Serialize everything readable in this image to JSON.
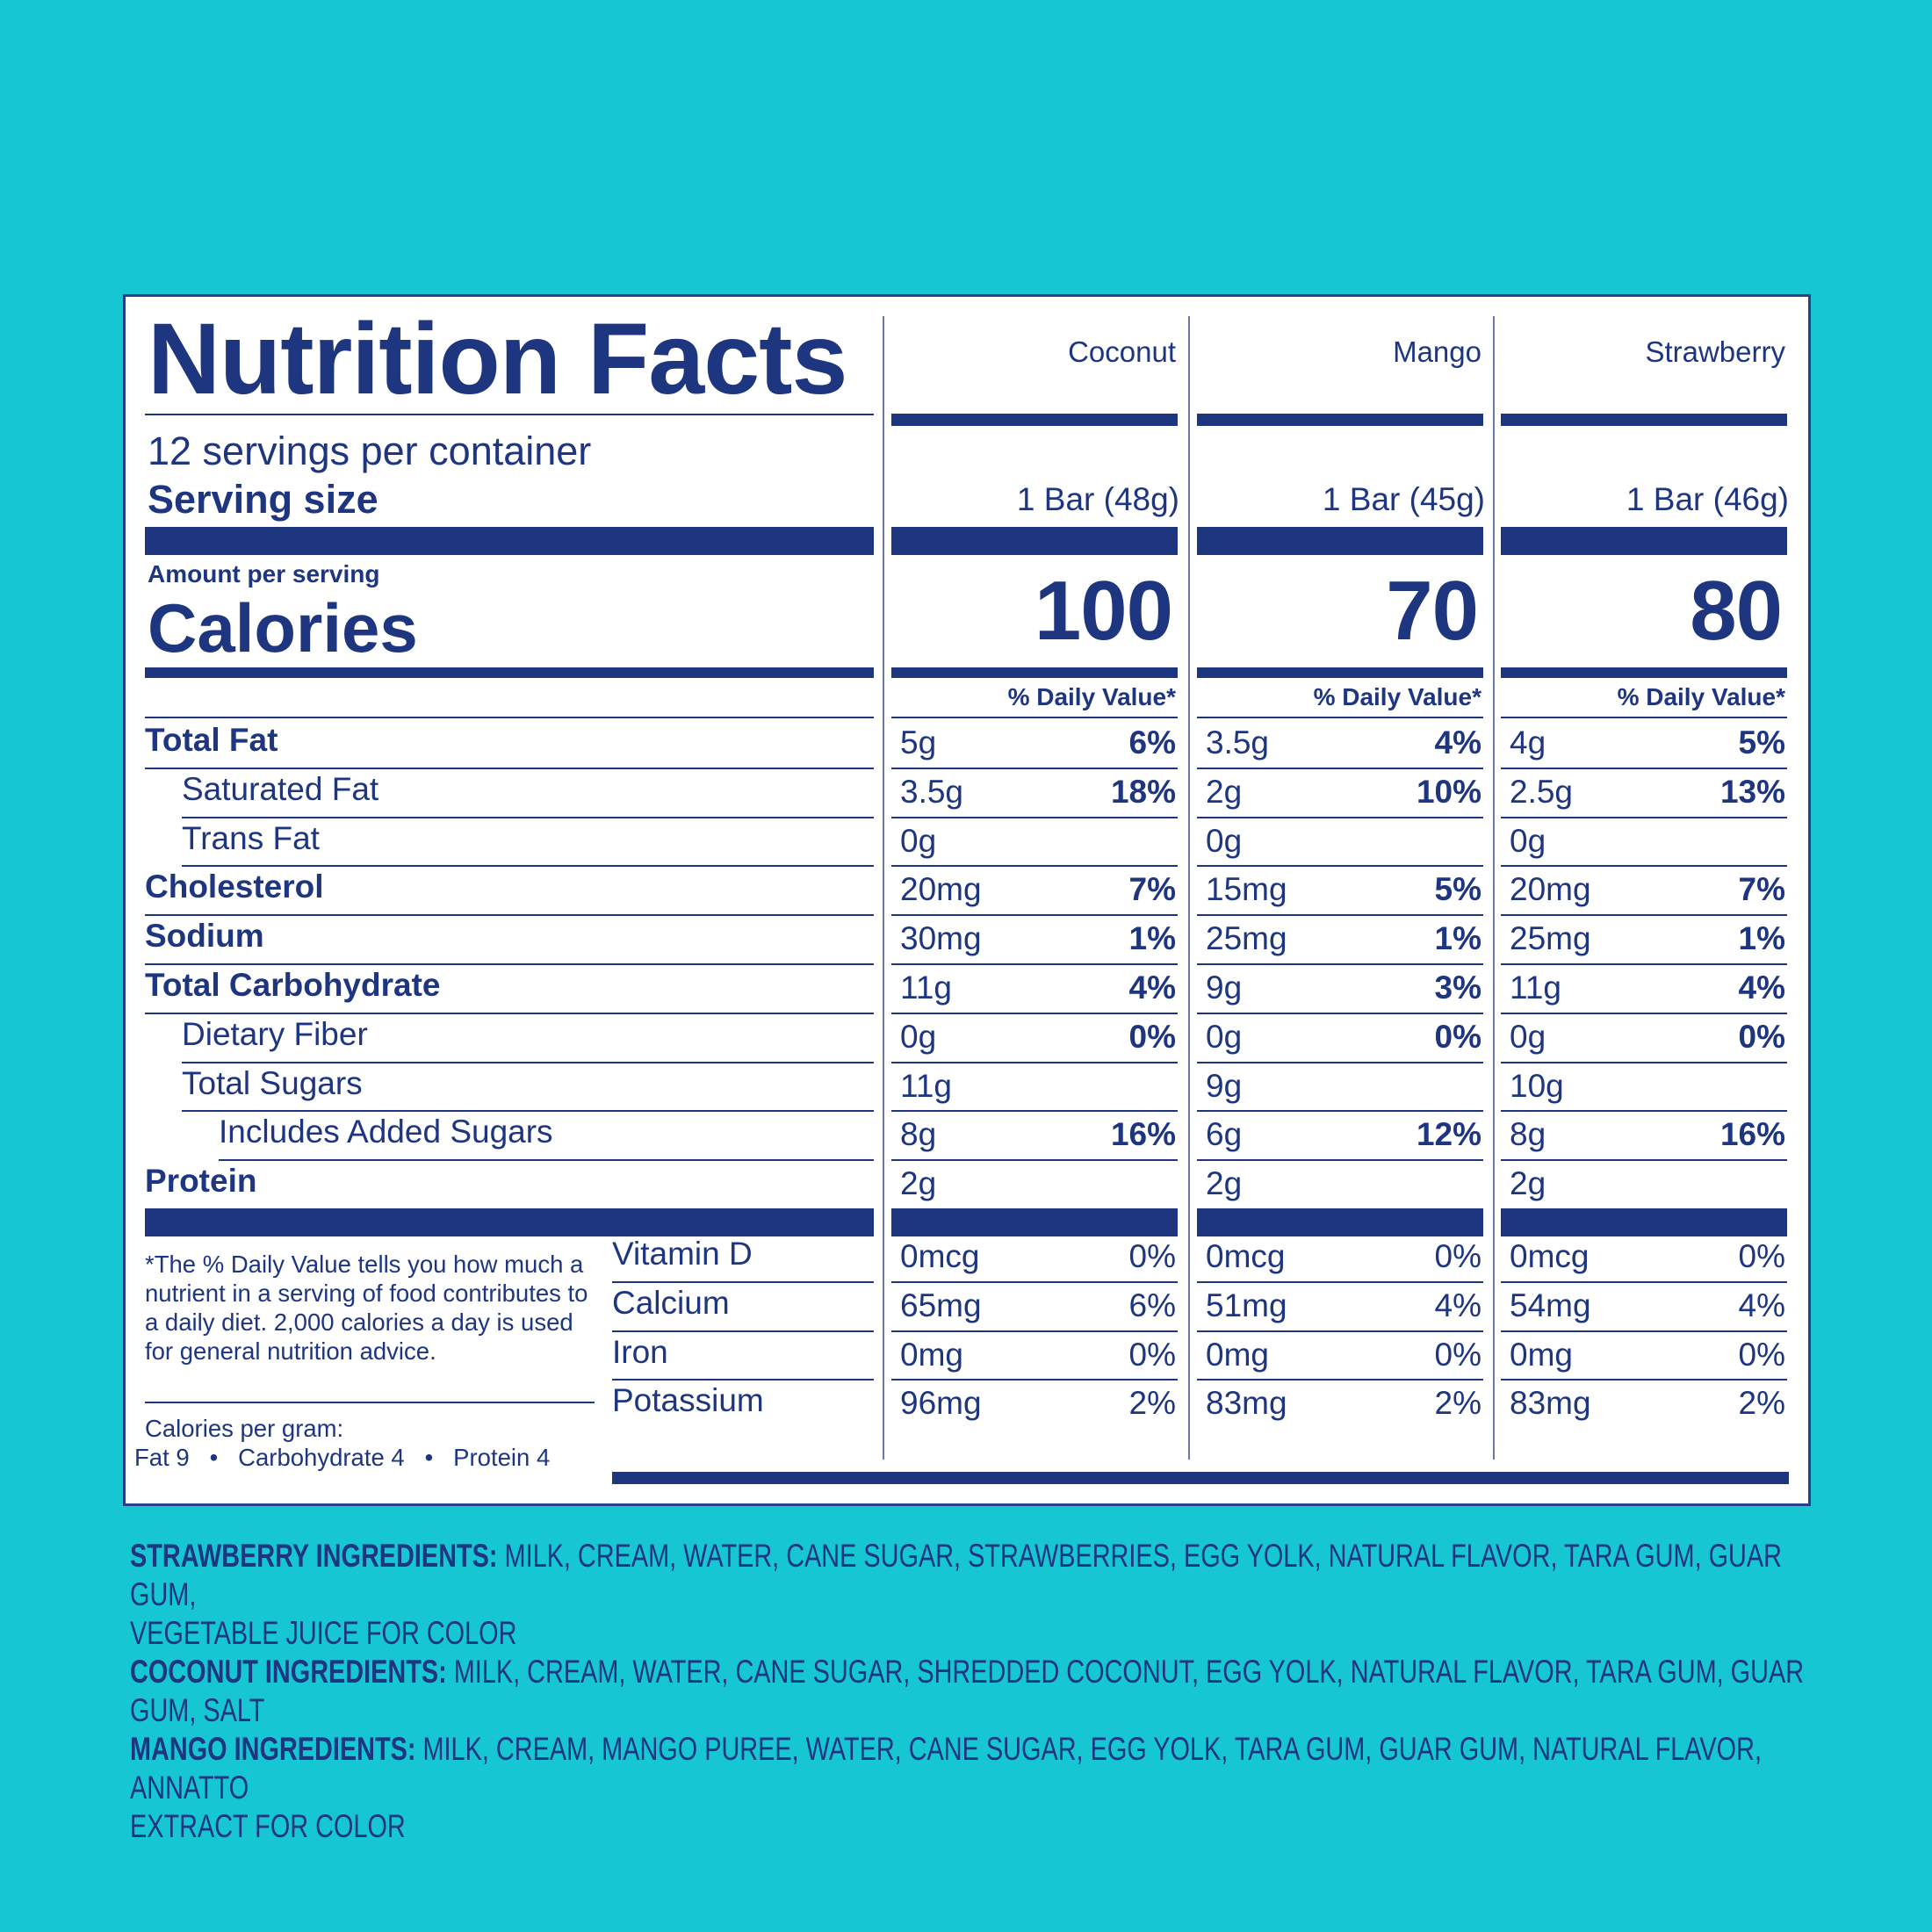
{
  "title": "Nutrition Facts",
  "servings_per_container": "12 servings per container",
  "serving_size_label": "Serving size",
  "amount_per_serving": "Amount per serving",
  "calories_label": "Calories",
  "daily_value_header": "% Daily Value*",
  "columns": [
    {
      "name": "Coconut",
      "serving_size": "1 Bar (48g)",
      "calories": "100"
    },
    {
      "name": "Mango",
      "serving_size": "1 Bar (45g)",
      "calories": "70"
    },
    {
      "name": "Strawberry",
      "serving_size": "1 Bar (46g)",
      "calories": "80"
    }
  ],
  "nutrients": [
    {
      "label": "Total Fat",
      "bold": true,
      "indent": 0,
      "values": [
        [
          "5g",
          "6%"
        ],
        [
          "3.5g",
          "4%"
        ],
        [
          "4g",
          "5%"
        ]
      ]
    },
    {
      "label": "Saturated Fat",
      "bold": false,
      "indent": 1,
      "values": [
        [
          "3.5g",
          "18%"
        ],
        [
          "2g",
          "10%"
        ],
        [
          "2.5g",
          "13%"
        ]
      ]
    },
    {
      "label": "Trans Fat",
      "bold": false,
      "indent": 1,
      "values": [
        [
          "0g",
          ""
        ],
        [
          "0g",
          ""
        ],
        [
          "0g",
          ""
        ]
      ]
    },
    {
      "label": "Cholesterol",
      "bold": true,
      "indent": 0,
      "values": [
        [
          "20mg",
          "7%"
        ],
        [
          "15mg",
          "5%"
        ],
        [
          "20mg",
          "7%"
        ]
      ]
    },
    {
      "label": "Sodium",
      "bold": true,
      "indent": 0,
      "values": [
        [
          "30mg",
          "1%"
        ],
        [
          "25mg",
          "1%"
        ],
        [
          "25mg",
          "1%"
        ]
      ]
    },
    {
      "label": "Total Carbohydrate",
      "bold": true,
      "indent": 0,
      "values": [
        [
          "11g",
          "4%"
        ],
        [
          "9g",
          "3%"
        ],
        [
          "11g",
          "4%"
        ]
      ]
    },
    {
      "label": "Dietary Fiber",
      "bold": false,
      "indent": 1,
      "values": [
        [
          "0g",
          "0%"
        ],
        [
          "0g",
          "0%"
        ],
        [
          "0g",
          "0%"
        ]
      ]
    },
    {
      "label": "Total Sugars",
      "bold": false,
      "indent": 1,
      "values": [
        [
          "11g",
          ""
        ],
        [
          "9g",
          ""
        ],
        [
          "10g",
          ""
        ]
      ]
    },
    {
      "label": "Includes Added Sugars",
      "bold": false,
      "indent": 2,
      "values": [
        [
          "8g",
          "16%"
        ],
        [
          "6g",
          "12%"
        ],
        [
          "8g",
          "16%"
        ]
      ]
    },
    {
      "label": "Protein",
      "bold": true,
      "indent": 0,
      "values": [
        [
          "2g",
          ""
        ],
        [
          "2g",
          ""
        ],
        [
          "2g",
          ""
        ]
      ]
    }
  ],
  "vitamins": [
    {
      "label": "Vitamin D",
      "values": [
        [
          "0mcg",
          "0%"
        ],
        [
          "0mcg",
          "0%"
        ],
        [
          "0mcg",
          "0%"
        ]
      ]
    },
    {
      "label": "Calcium",
      "values": [
        [
          "65mg",
          "6%"
        ],
        [
          "51mg",
          "4%"
        ],
        [
          "54mg",
          "4%"
        ]
      ]
    },
    {
      "label": "Iron",
      "values": [
        [
          "0mg",
          "0%"
        ],
        [
          "0mg",
          "0%"
        ],
        [
          "0mg",
          "0%"
        ]
      ]
    },
    {
      "label": "Potassium",
      "values": [
        [
          "96mg",
          "2%"
        ],
        [
          "83mg",
          "2%"
        ],
        [
          "83mg",
          "2%"
        ]
      ]
    }
  ],
  "footnote": "*The % Daily Value tells you how much a nutrient in a serving of food contributes to a daily diet. 2,000 calories a day is used for general nutrition advice.",
  "calories_per_gram_label": "Calories per gram:",
  "calories_per_gram_values": "Fat 9   •   Carbohydrate 4   •   Protein 4",
  "ingredients": [
    {
      "heading": "STRAWBERRY INGREDIENTS:",
      "text": " MILK, CREAM, WATER, CANE SUGAR, STRAWBERRIES, EGG YOLK, NATURAL FLAVOR, TARA GUM, GUAR GUM,",
      "continuation": "VEGETABLE JUICE FOR COLOR"
    },
    {
      "heading": "COCONUT INGREDIENTS:",
      "text": " MILK, CREAM, WATER, CANE SUGAR, SHREDDED COCONUT, EGG YOLK, NATURAL FLAVOR, TARA GUM, GUAR GUM, SALT",
      "continuation": ""
    },
    {
      "heading": "MANGO INGREDIENTS:",
      "text": " MILK, CREAM, MANGO PUREE, WATER, CANE SUGAR, EGG YOLK, TARA GUM, GUAR GUM, NATURAL FLAVOR, ANNATTO",
      "continuation": "EXTRACT FOR COLOR"
    }
  ],
  "colors": {
    "background": "#17c6d3",
    "ink": "#1e3580",
    "panel": "#ffffff"
  }
}
